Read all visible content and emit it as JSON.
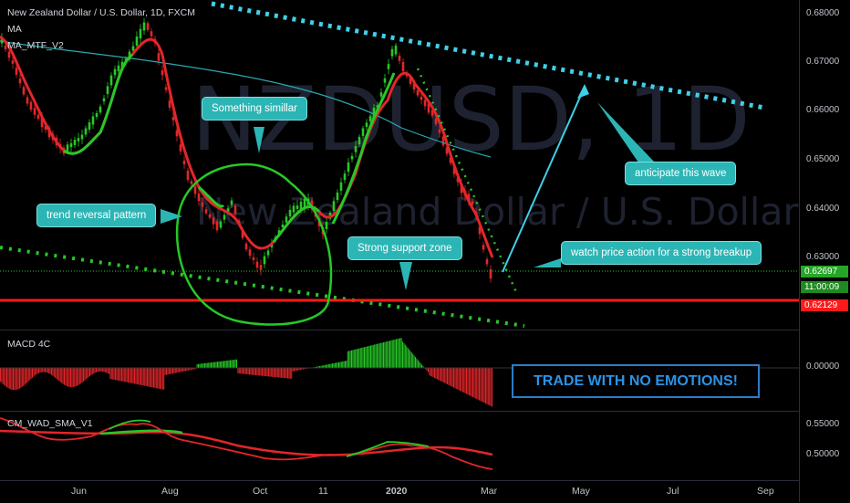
{
  "header": {
    "title": "New Zealand Dollar / U.S. Dollar, 1D, FXCM",
    "ind_ma": "MA",
    "ind_ma_mtf": "MA_MTF_V2"
  },
  "watermark": {
    "symbol": "NZDUSD, 1D",
    "name": "New Zealand Dollar / U.S. Dollar"
  },
  "price_axis": {
    "ticks": [
      "0.68000",
      "0.67000",
      "0.66000",
      "0.65000",
      "0.64000",
      "0.63000"
    ],
    "tag_current": "0.62697",
    "tag_countdown": "11:00:09",
    "tag_support": "0.62129"
  },
  "macd": {
    "label": "MACD 4C",
    "tick": "0.00000"
  },
  "wad": {
    "label": "CM_WAD_SMA_V1",
    "ticks": [
      "0.55000",
      "0.50000"
    ]
  },
  "time_axis": {
    "ticks": [
      "Jun",
      "Aug",
      "Oct",
      "11",
      "2020",
      "Mar",
      "May",
      "Jul",
      "Sep"
    ]
  },
  "callouts": {
    "similar": "Something simillar",
    "reversal": "trend reversal pattern",
    "support": "Strong support zone",
    "wave": "anticipate this wave",
    "breakup": "watch price action for a strong breakup"
  },
  "banner": "TRADE WITH NO EMOTIONS!",
  "colors": {
    "bull": "#26c926",
    "bear": "#e3262a",
    "support_line": "#ff1a1a",
    "trendline": "#3fd0e8",
    "callout_bg": "#2cb5b5",
    "banner": "#2b93e6"
  }
}
